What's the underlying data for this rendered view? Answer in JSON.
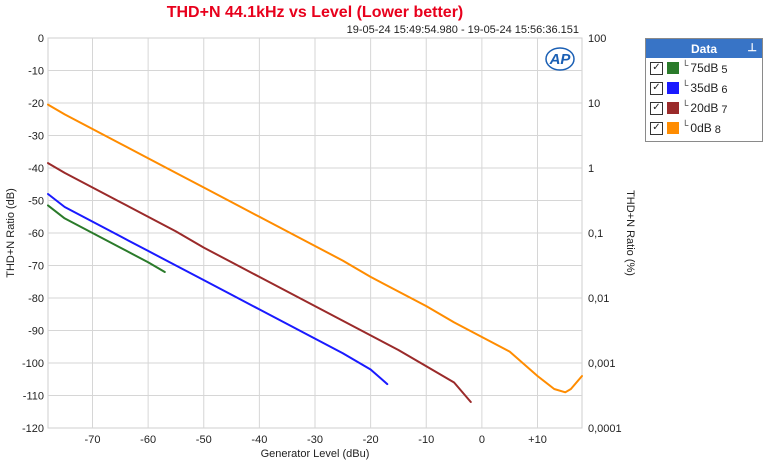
{
  "chart_data": {
    "type": "line",
    "title": "THD+N 44.1kHz vs Level (Lower better)",
    "timestamp": "19-05-24 15:49:54.980 - 19-05-24 15:56:36.151",
    "xlabel": "Generator Level (dBu)",
    "ylabel": "THD+N Ratio (dB)",
    "y2label": "THD+N Ratio (%)",
    "xlim": [
      -78,
      18
    ],
    "ylim": [
      -120,
      0
    ],
    "x_ticks": [
      "-70",
      "-60",
      "-50",
      "-40",
      "-30",
      "-20",
      "-10",
      "0",
      "+10"
    ],
    "x_tick_values": [
      -70,
      -60,
      -50,
      -40,
      -30,
      -20,
      -10,
      0,
      10
    ],
    "y_ticks": [
      "0",
      "-10",
      "-20",
      "-30",
      "-40",
      "-50",
      "-60",
      "-70",
      "-80",
      "-90",
      "-100",
      "-110",
      "-120"
    ],
    "y_tick_values": [
      0,
      -10,
      -20,
      -30,
      -40,
      -50,
      -60,
      -70,
      -80,
      -90,
      -100,
      -110,
      -120
    ],
    "y2_ticks": [
      "100",
      "10",
      "1",
      "0,1",
      "0,01",
      "0,001",
      "0,0001"
    ],
    "y2_tick_values": [
      0,
      -20,
      -40,
      -60,
      -80,
      -100,
      -120
    ],
    "grid": true,
    "legend_position": "top-right outside",
    "series": [
      {
        "name": "75dB",
        "index": "5",
        "color": "#2a7a2a",
        "x": [
          -78,
          -75,
          -70,
          -65,
          -60,
          -57
        ],
        "y": [
          -51.5,
          -55.5,
          -60,
          -64.5,
          -69,
          -72
        ]
      },
      {
        "name": "35dB",
        "index": "6",
        "color": "#1a1aff",
        "x": [
          -78,
          -75,
          -70,
          -65,
          -60,
          -55,
          -50,
          -45,
          -40,
          -35,
          -30,
          -25,
          -20,
          -17
        ],
        "y": [
          -48,
          -52,
          -56.5,
          -61,
          -65.5,
          -70,
          -74.5,
          -79,
          -83.5,
          -88,
          -92.5,
          -97,
          -102,
          -106.5
        ]
      },
      {
        "name": "20dB",
        "index": "7",
        "color": "#9a2a2a",
        "x": [
          -78,
          -75,
          -70,
          -65,
          -60,
          -55,
          -50,
          -45,
          -40,
          -35,
          -30,
          -25,
          -20,
          -15,
          -10,
          -5,
          -2
        ],
        "y": [
          -38.5,
          -41.5,
          -46,
          -50.5,
          -55,
          -59.5,
          -64.5,
          -69,
          -73.5,
          -78,
          -82.5,
          -87,
          -91.5,
          -96,
          -101,
          -106,
          -112
        ]
      },
      {
        "name": "0dB",
        "index": "8",
        "color": "#ff8c00",
        "x": [
          -78,
          -75,
          -70,
          -65,
          -60,
          -55,
          -50,
          -45,
          -40,
          -35,
          -30,
          -25,
          -20,
          -15,
          -10,
          -5,
          0,
          5,
          10,
          13,
          15,
          16,
          18
        ],
        "y": [
          -20.5,
          -23.5,
          -28,
          -32.5,
          -37,
          -41.5,
          -46,
          -50.5,
          -55,
          -59.5,
          -64,
          -68.5,
          -73.5,
          -78,
          -82.5,
          -87.5,
          -92,
          -96.5,
          -104,
          -108,
          -109,
          -108,
          -104
        ]
      }
    ]
  },
  "legend": {
    "title": "Data",
    "pin_icon": "pin-icon",
    "check_mark": "✓",
    "corner_mark": "└"
  },
  "logo": {
    "text": "AP",
    "color": "#1a5fb4"
  }
}
